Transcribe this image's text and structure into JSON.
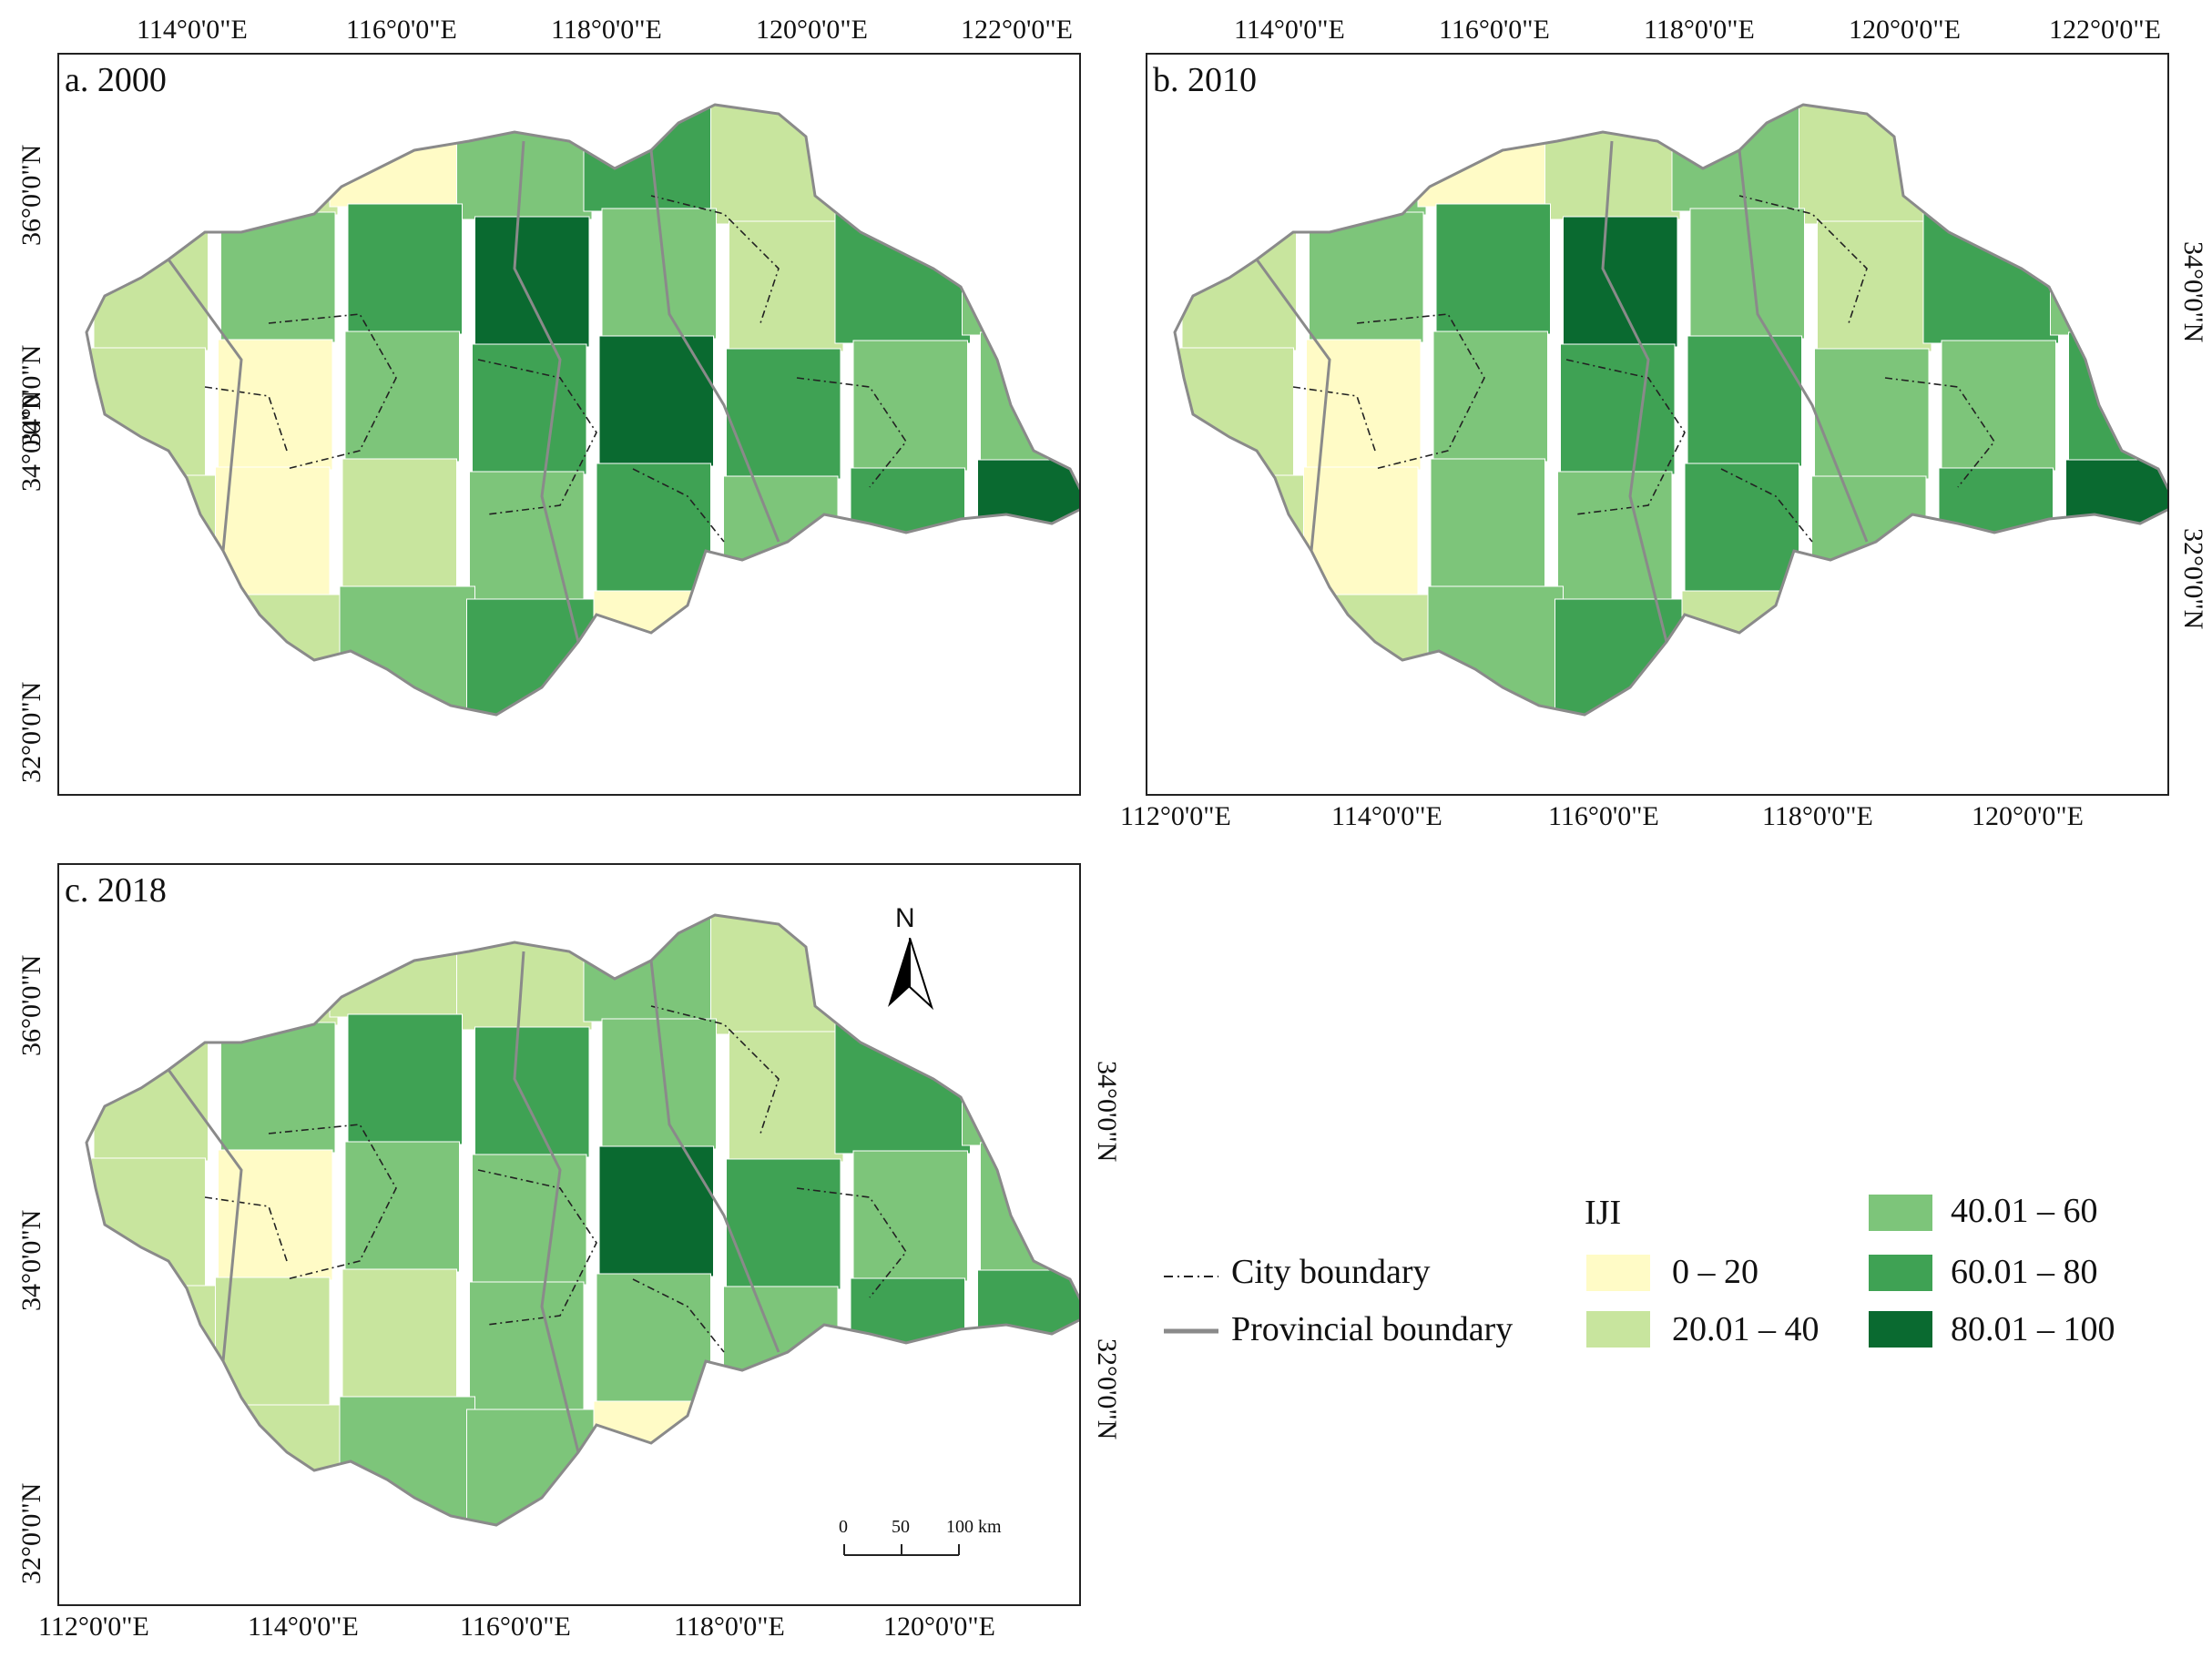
{
  "panels": [
    {
      "title": "a. 2000",
      "x_top_ticks": [
        "114°0'0\"E",
        "116°0'0\"E",
        "118°0'0\"E",
        "120°0'0\"E",
        "122°0'0\"E"
      ],
      "y_left_ticks": [
        "36°0'0\"N",
        "34°0'0\"N",
        "34°0'0\"N",
        "32°0'0\"N"
      ]
    },
    {
      "title": "b. 2010",
      "x_top_ticks": [
        "114°0'0\"E",
        "116°0'0\"E",
        "118°0'0\"E",
        "120°0'0\"E",
        "122°0'0\"E"
      ],
      "x_bottom_ticks": [
        "112°0'0\"E",
        "114°0'0\"E",
        "116°0'0\"E",
        "118°0'0\"E",
        "120°0'0\"E"
      ],
      "y_right_ticks": [
        "34°0'0\"N",
        "32°0'0\"N"
      ]
    },
    {
      "title": "c. 2018",
      "x_bottom_ticks": [
        "112°0'0\"E",
        "114°0'0\"E",
        "116°0'0\"E",
        "118°0'0\"E",
        "120°0'0\"E"
      ],
      "y_left_ticks": [
        "34°0'0\"N",
        "36°0'0\"N",
        "34°0'0\"N",
        "32°0'0\"N",
        "32°0'0\"N"
      ],
      "y_right_ticks": [
        "34°0'0\"N",
        "32°0'0\"N"
      ]
    }
  ],
  "north_arrow": {
    "label": "N"
  },
  "scale_bar": {
    "labels": [
      "0",
      "50",
      "100 km"
    ]
  },
  "legend": {
    "title": "IJI",
    "boundaries": [
      {
        "label": "City boundary",
        "style": "dash-dot"
      },
      {
        "label": "Provincial boundary",
        "style": "solid-gray"
      }
    ],
    "classes": [
      {
        "label": "0 – 20",
        "color": "#FFFBC6"
      },
      {
        "label": "20.01 – 40",
        "color": "#C8E59E"
      },
      {
        "label": "40.01 – 60",
        "color": "#7DC57A"
      },
      {
        "label": "60.01 – 80",
        "color": "#3FA254"
      },
      {
        "label": "80.01 – 100",
        "color": "#0A6A30"
      }
    ]
  }
}
